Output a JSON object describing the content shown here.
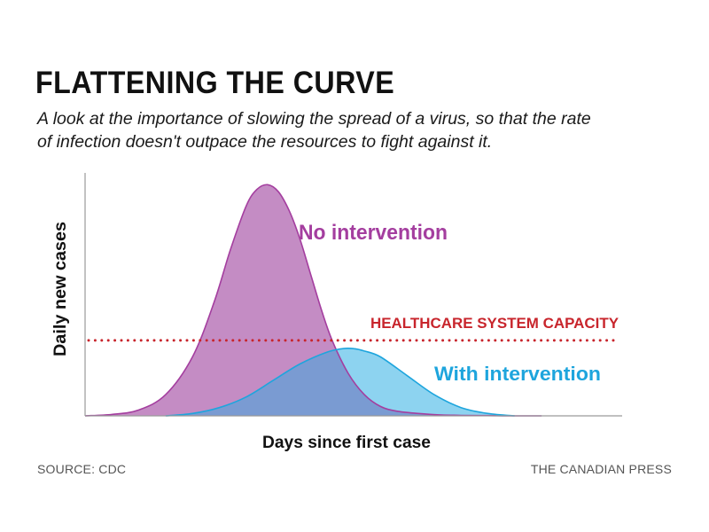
{
  "title": "FLATTENING THE CURVE",
  "subtitle": "A look at the importance of slowing the spread of a virus, so that the rate of infection doesn't outpace the resources to fight against it.",
  "source": "SOURCE: CDC",
  "credit": "THE CANADIAN PRESS",
  "chart_data": {
    "type": "area",
    "xlabel": "Days since first case",
    "ylabel": "Daily new cases",
    "xlim": [
      0,
      100
    ],
    "ylim": [
      0,
      100
    ],
    "grid": false,
    "legend": "inline labels",
    "series": [
      {
        "name": "No intervention",
        "color": "#a43e9f",
        "fill": "#c48cc4",
        "x": [
          0,
          5,
          10,
          15,
          20,
          24,
          27,
          30,
          32,
          34,
          36,
          38,
          40,
          42,
          44,
          46,
          49,
          52,
          55,
          58,
          62,
          66,
          70,
          75,
          80,
          85
        ],
        "values": [
          0,
          0.6,
          2.5,
          9,
          25,
          48,
          70,
          89,
          96,
          98,
          95,
          87,
          75,
          60,
          45,
          32,
          18,
          9,
          4,
          2,
          1,
          0.4,
          0.2,
          0.1,
          0,
          0
        ]
      },
      {
        "name": "With intervention",
        "color": "#1ea5dd",
        "fill": "#8dd3f0",
        "x": [
          15,
          20,
          25,
          30,
          35,
          40,
          45,
          48,
          50,
          52,
          55,
          60,
          65,
          70,
          75,
          80
        ],
        "values": [
          0,
          1,
          3.5,
          8,
          15,
          22,
          27,
          28.5,
          28.5,
          27.5,
          25,
          17,
          9,
          3.5,
          1,
          0
        ]
      }
    ],
    "annotations": [
      {
        "label": "HEALTHCARE SYSTEM CAPACITY",
        "y": 32,
        "color": "#c8252c",
        "style": "dotted"
      }
    ]
  }
}
